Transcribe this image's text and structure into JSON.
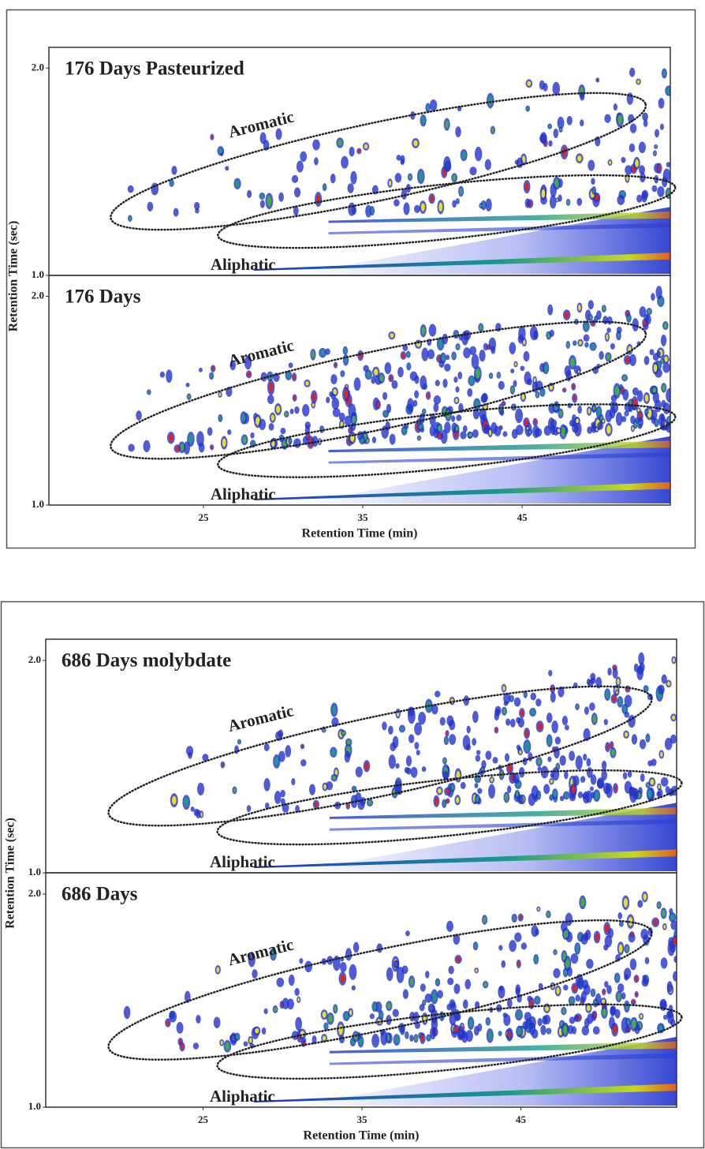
{
  "chart_data": [
    {
      "type": "heatmap",
      "title": "176 Days Pasteurized",
      "xlim": [
        15.3,
        54.3
      ],
      "ylim": [
        1.0,
        2.1
      ],
      "yticks": [
        {
          "value": 1.0,
          "label": "1.0"
        },
        {
          "value": 2.0,
          "label": "2.0"
        }
      ],
      "ylabel": "Retention Time (sec)",
      "annotations": [
        "Aromatic",
        "Aliphatic"
      ]
    },
    {
      "type": "heatmap",
      "title": "176 Days",
      "xlim": [
        15.3,
        54.3
      ],
      "ylim": [
        1.0,
        2.1
      ],
      "xticks": [
        25,
        35,
        45
      ],
      "yticks": [
        {
          "value": 1.0,
          "label": "1.0"
        },
        {
          "value": 2.0,
          "label": "2.0"
        }
      ],
      "xlabel": "Retention Time (min)",
      "annotations": [
        "Aromatic",
        "Aliphatic"
      ]
    },
    {
      "type": "heatmap",
      "title": "686 Days molybdate",
      "xlim": [
        15.1,
        54.8
      ],
      "ylim": [
        1.0,
        2.1
      ],
      "yticks": [
        {
          "value": 1.0,
          "label": "1.0"
        },
        {
          "value": 2.0,
          "label": "2.0"
        }
      ],
      "ylabel": "Retention Time (sec)",
      "annotations": [
        "Aromatic",
        "Aliphatic"
      ]
    },
    {
      "type": "heatmap",
      "title": "686 Days",
      "xlim": [
        15.1,
        54.8
      ],
      "ylim": [
        1.0,
        2.1
      ],
      "xticks": [
        25,
        35,
        45
      ],
      "yticks": [
        {
          "value": 1.0,
          "label": "1.0"
        },
        {
          "value": 2.0,
          "label": "2.0"
        }
      ],
      "xlabel": "Retention Time (min)",
      "annotations": [
        "Aromatic",
        "Aliphatic"
      ]
    }
  ]
}
